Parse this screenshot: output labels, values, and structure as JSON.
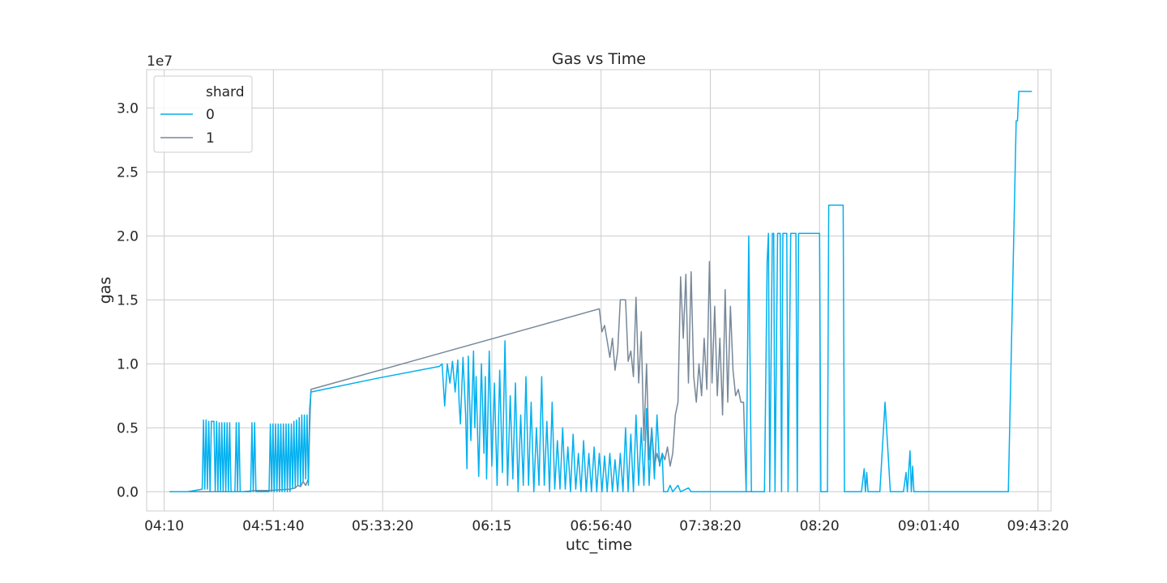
{
  "chart_data": {
    "type": "line",
    "title": "Gas vs Time",
    "xlabel": "utc_time",
    "ylabel": "gas",
    "y_offset_label": "1e7",
    "xlim": [
      "04:03:20",
      "09:48:20"
    ],
    "ylim": [
      -0.15,
      3.3
    ],
    "y_scale_note": "values in units of 1e7",
    "x_ticks": [
      "04:10",
      "04:51:40",
      "05:33:20",
      "06:15",
      "06:56:40",
      "07:38:20",
      "08:20",
      "09:01:40",
      "09:43:20"
    ],
    "y_ticks": [
      "0.0",
      "0.5",
      "1.0",
      "1.5",
      "2.0",
      "2.5",
      "3.0"
    ],
    "grid": true,
    "legend": {
      "title": "shard",
      "placement": "top-left",
      "entries": [
        "0",
        "1"
      ]
    },
    "colors": {
      "0": "#00b0f0",
      "1": "#778899"
    },
    "series": [
      {
        "name": "0",
        "points": [
          [
            "04:12:00",
            0.0
          ],
          [
            "04:19:00",
            0.0
          ],
          [
            "04:24:30",
            0.02
          ],
          [
            "04:25:00",
            0.56
          ],
          [
            "04:25:30",
            0.02
          ],
          [
            "04:26:00",
            0.56
          ],
          [
            "04:26:30",
            0.02
          ],
          [
            "04:27:00",
            0.55
          ],
          [
            "04:27:30",
            0.0
          ],
          [
            "04:28:00",
            0.55
          ],
          [
            "04:29:00",
            0.55
          ],
          [
            "04:29:30",
            0.0
          ],
          [
            "04:30:00",
            0.55
          ],
          [
            "04:30:30",
            0.0
          ],
          [
            "04:31:00",
            0.54
          ],
          [
            "04:31:30",
            0.0
          ],
          [
            "04:32:00",
            0.54
          ],
          [
            "04:32:30",
            0.0
          ],
          [
            "04:33:00",
            0.54
          ],
          [
            "04:33:30",
            0.0
          ],
          [
            "04:34:00",
            0.54
          ],
          [
            "04:34:30",
            0.0
          ],
          [
            "04:35:00",
            0.54
          ],
          [
            "04:35:30",
            0.0
          ],
          [
            "04:37:00",
            0.0
          ],
          [
            "04:37:30",
            0.54
          ],
          [
            "04:38:00",
            0.0
          ],
          [
            "04:38:30",
            0.54
          ],
          [
            "04:39:00",
            0.0
          ],
          [
            "04:40:00",
            0.0
          ],
          [
            "04:43:00",
            0.0
          ],
          [
            "04:43:30",
            0.54
          ],
          [
            "04:44:00",
            0.0
          ],
          [
            "04:44:30",
            0.54
          ],
          [
            "04:45:00",
            0.0
          ],
          [
            "04:50:00",
            0.0
          ],
          [
            "04:50:30",
            0.53
          ],
          [
            "04:51:00",
            0.0
          ],
          [
            "04:51:30",
            0.53
          ],
          [
            "04:52:00",
            0.0
          ],
          [
            "04:52:30",
            0.53
          ],
          [
            "04:53:00",
            0.0
          ],
          [
            "04:53:30",
            0.53
          ],
          [
            "04:54:00",
            0.0
          ],
          [
            "04:54:30",
            0.53
          ],
          [
            "04:55:00",
            0.0
          ],
          [
            "04:55:30",
            0.53
          ],
          [
            "04:56:00",
            0.0
          ],
          [
            "04:56:30",
            0.53
          ],
          [
            "04:57:00",
            0.0
          ],
          [
            "04:57:30",
            0.53
          ],
          [
            "04:58:00",
            0.0
          ],
          [
            "04:58:30",
            0.53
          ],
          [
            "04:59:00",
            0.03
          ],
          [
            "04:59:30",
            0.55
          ],
          [
            "05:00:00",
            0.03
          ],
          [
            "05:00:30",
            0.56
          ],
          [
            "05:01:00",
            0.05
          ],
          [
            "05:01:30",
            0.58
          ],
          [
            "05:02:00",
            0.05
          ],
          [
            "05:02:30",
            0.6
          ],
          [
            "05:03:00",
            0.08
          ],
          [
            "05:03:30",
            0.6
          ],
          [
            "05:04:00",
            0.1
          ],
          [
            "05:04:30",
            0.6
          ],
          [
            "05:05:00",
            0.05
          ],
          [
            "05:05:30",
            0.65
          ],
          [
            "05:06:00",
            0.78
          ],
          [
            "05:32:00",
            0.89
          ],
          [
            "05:55:00",
            0.98
          ],
          [
            "05:56:00",
            1.0
          ],
          [
            "05:57:00",
            0.67
          ],
          [
            "05:58:00",
            1.0
          ],
          [
            "05:59:00",
            0.85
          ],
          [
            "06:00:00",
            1.02
          ],
          [
            "06:01:00",
            0.78
          ],
          [
            "06:02:00",
            1.03
          ],
          [
            "06:02:30",
            0.7
          ],
          [
            "06:03:00",
            0.53
          ],
          [
            "06:04:00",
            1.05
          ],
          [
            "06:05:00",
            0.6
          ],
          [
            "06:05:30",
            0.18
          ],
          [
            "06:06:00",
            1.06
          ],
          [
            "06:07:00",
            0.4
          ],
          [
            "06:08:00",
            1.1
          ],
          [
            "06:08:30",
            0.5
          ],
          [
            "06:09:00",
            0.9
          ],
          [
            "06:10:00",
            0.12
          ],
          [
            "06:11:00",
            1.0
          ],
          [
            "06:12:00",
            0.3
          ],
          [
            "06:12:30",
            0.9
          ],
          [
            "06:13:00",
            0.1
          ],
          [
            "06:14:00",
            1.1
          ],
          [
            "06:15:00",
            0.2
          ],
          [
            "06:16:00",
            0.85
          ],
          [
            "06:17:00",
            0.05
          ],
          [
            "06:18:00",
            0.95
          ],
          [
            "06:19:00",
            0.15
          ],
          [
            "06:20:00",
            1.18
          ],
          [
            "06:21:00",
            0.05
          ],
          [
            "06:22:00",
            0.75
          ],
          [
            "06:23:00",
            0.1
          ],
          [
            "06:24:00",
            0.85
          ],
          [
            "06:25:00",
            0.0
          ],
          [
            "06:26:00",
            0.6
          ],
          [
            "06:27:00",
            0.05
          ],
          [
            "06:28:00",
            0.9
          ],
          [
            "06:29:00",
            0.05
          ],
          [
            "06:30:00",
            0.7
          ],
          [
            "06:31:00",
            0.0
          ],
          [
            "06:32:00",
            0.5
          ],
          [
            "06:33:00",
            0.05
          ],
          [
            "06:34:00",
            0.9
          ],
          [
            "06:35:00",
            0.05
          ],
          [
            "06:36:00",
            0.55
          ],
          [
            "06:37:00",
            0.0
          ],
          [
            "06:38:00",
            0.7
          ],
          [
            "06:39:00",
            0.02
          ],
          [
            "06:40:00",
            0.4
          ],
          [
            "06:41:00",
            0.02
          ],
          [
            "06:42:00",
            0.5
          ],
          [
            "06:43:00",
            0.02
          ],
          [
            "06:44:00",
            0.35
          ],
          [
            "06:45:00",
            0.0
          ],
          [
            "06:46:00",
            0.45
          ],
          [
            "06:47:00",
            0.02
          ],
          [
            "06:48:00",
            0.3
          ],
          [
            "06:49:00",
            0.0
          ],
          [
            "06:50:00",
            0.4
          ],
          [
            "06:51:00",
            0.0
          ],
          [
            "06:52:00",
            0.3
          ],
          [
            "06:53:00",
            0.0
          ],
          [
            "06:54:00",
            0.35
          ],
          [
            "06:55:00",
            0.0
          ],
          [
            "06:56:00",
            0.3
          ],
          [
            "06:57:00",
            0.0
          ],
          [
            "06:58:00",
            0.28
          ],
          [
            "06:59:00",
            0.0
          ],
          [
            "07:00:00",
            0.3
          ],
          [
            "07:01:00",
            0.0
          ],
          [
            "07:02:00",
            0.25
          ],
          [
            "07:03:00",
            0.0
          ],
          [
            "07:04:00",
            0.3
          ],
          [
            "07:05:00",
            0.0
          ],
          [
            "07:06:00",
            0.5
          ],
          [
            "07:07:00",
            0.0
          ],
          [
            "07:08:00",
            0.45
          ],
          [
            "07:09:00",
            0.0
          ],
          [
            "07:10:00",
            0.6
          ],
          [
            "07:11:00",
            0.05
          ],
          [
            "07:12:00",
            0.5
          ],
          [
            "07:13:00",
            0.05
          ],
          [
            "07:14:00",
            0.65
          ],
          [
            "07:15:00",
            0.05
          ],
          [
            "07:16:00",
            0.5
          ],
          [
            "07:17:00",
            0.1
          ],
          [
            "07:18:00",
            0.6
          ],
          [
            "07:19:00",
            0.2
          ],
          [
            "07:20:00",
            0.3
          ],
          [
            "07:20:30",
            0.0
          ],
          [
            "07:22:00",
            0.0
          ],
          [
            "07:23:00",
            0.05
          ],
          [
            "07:24:00",
            0.0
          ],
          [
            "07:26:00",
            0.05
          ],
          [
            "07:27:00",
            0.0
          ],
          [
            "07:30:00",
            0.03
          ],
          [
            "07:31:00",
            0.0
          ],
          [
            "07:52:00",
            0.0
          ],
          [
            "07:53:00",
            2.0
          ],
          [
            "07:54:00",
            0.0
          ],
          [
            "07:59:00",
            0.0
          ],
          [
            "08:00:00",
            1.8
          ],
          [
            "08:00:30",
            2.02
          ],
          [
            "08:01:00",
            0.0
          ],
          [
            "08:02:00",
            2.02
          ],
          [
            "08:02:30",
            2.02
          ],
          [
            "08:03:00",
            0.0
          ],
          [
            "08:04:00",
            2.02
          ],
          [
            "08:05:00",
            2.02
          ],
          [
            "08:05:30",
            0.0
          ],
          [
            "08:06:00",
            2.02
          ],
          [
            "08:07:30",
            2.02
          ],
          [
            "08:08:00",
            0.0
          ],
          [
            "08:09:00",
            2.02
          ],
          [
            "08:11:00",
            2.02
          ],
          [
            "08:11:30",
            0.0
          ],
          [
            "08:12:00",
            2.02
          ],
          [
            "08:20:00",
            2.02
          ],
          [
            "08:20:30",
            0.0
          ],
          [
            "08:23:00",
            0.0
          ],
          [
            "08:23:30",
            2.24
          ],
          [
            "08:29:00",
            2.24
          ],
          [
            "08:29:30",
            0.0
          ],
          [
            "08:36:00",
            0.0
          ],
          [
            "08:37:00",
            0.18
          ],
          [
            "08:37:30",
            0.0
          ],
          [
            "08:38:00",
            0.15
          ],
          [
            "08:38:30",
            0.0
          ],
          [
            "08:43:00",
            0.0
          ],
          [
            "08:45:00",
            0.7
          ],
          [
            "08:47:00",
            0.0
          ],
          [
            "08:52:00",
            0.0
          ],
          [
            "08:53:00",
            0.15
          ],
          [
            "08:53:30",
            0.0
          ],
          [
            "08:54:30",
            0.32
          ],
          [
            "08:55:00",
            0.0
          ],
          [
            "08:55:30",
            0.2
          ],
          [
            "08:56:00",
            0.0
          ],
          [
            "09:00:00",
            0.0
          ],
          [
            "09:18:00",
            0.0
          ],
          [
            "09:32:00",
            0.0
          ],
          [
            "09:34:00",
            1.9
          ],
          [
            "09:35:00",
            2.9
          ],
          [
            "09:35:30",
            2.9
          ],
          [
            "09:36:00",
            3.13
          ],
          [
            "09:41:00",
            3.13
          ]
        ]
      },
      {
        "name": "1",
        "points": [
          [
            "04:12:00",
            0.0
          ],
          [
            "04:40:00",
            0.0
          ],
          [
            "04:45:00",
            0.01
          ],
          [
            "04:50:00",
            0.01
          ],
          [
            "04:58:00",
            0.02
          ],
          [
            "05:00:00",
            0.03
          ],
          [
            "05:01:00",
            0.05
          ],
          [
            "05:02:00",
            0.04
          ],
          [
            "05:03:00",
            0.08
          ],
          [
            "05:04:00",
            0.05
          ],
          [
            "05:05:00",
            0.1
          ],
          [
            "05:05:30",
            0.5
          ],
          [
            "05:06:00",
            0.8
          ],
          [
            "06:56:00",
            1.43
          ],
          [
            "06:57:00",
            1.25
          ],
          [
            "06:58:00",
            1.3
          ],
          [
            "06:59:00",
            1.18
          ],
          [
            "07:00:00",
            1.05
          ],
          [
            "07:01:00",
            1.2
          ],
          [
            "07:02:00",
            0.95
          ],
          [
            "07:03:00",
            1.1
          ],
          [
            "07:04:00",
            1.5
          ],
          [
            "07:06:00",
            1.5
          ],
          [
            "07:07:00",
            1.02
          ],
          [
            "07:08:00",
            1.1
          ],
          [
            "07:09:00",
            0.9
          ],
          [
            "07:10:00",
            1.52
          ],
          [
            "07:11:00",
            0.85
          ],
          [
            "07:12:00",
            1.25
          ],
          [
            "07:13:00",
            0.4
          ],
          [
            "07:14:00",
            1.0
          ],
          [
            "07:15:00",
            0.25
          ],
          [
            "07:16:00",
            0.5
          ],
          [
            "07:17:00",
            0.2
          ],
          [
            "07:18:00",
            0.3
          ],
          [
            "07:19:00",
            0.22
          ],
          [
            "07:20:00",
            0.3
          ],
          [
            "07:21:00",
            0.25
          ],
          [
            "07:22:00",
            0.35
          ],
          [
            "07:23:00",
            0.2
          ],
          [
            "07:24:00",
            0.3
          ],
          [
            "07:25:00",
            0.6
          ],
          [
            "07:26:00",
            0.7
          ],
          [
            "07:27:00",
            1.68
          ],
          [
            "07:28:00",
            1.2
          ],
          [
            "07:29:00",
            1.7
          ],
          [
            "07:30:00",
            0.85
          ],
          [
            "07:31:00",
            1.72
          ],
          [
            "07:32:00",
            0.9
          ],
          [
            "07:33:00",
            0.7
          ],
          [
            "07:34:00",
            1.0
          ],
          [
            "07:35:00",
            0.75
          ],
          [
            "07:36:00",
            1.2
          ],
          [
            "07:37:00",
            0.8
          ],
          [
            "07:38:00",
            1.8
          ],
          [
            "07:39:00",
            0.85
          ],
          [
            "07:40:00",
            1.45
          ],
          [
            "07:41:00",
            0.75
          ],
          [
            "07:42:00",
            1.2
          ],
          [
            "07:43:00",
            0.6
          ],
          [
            "07:44:00",
            1.58
          ],
          [
            "07:45:00",
            0.7
          ],
          [
            "07:46:00",
            1.45
          ],
          [
            "07:47:00",
            0.95
          ],
          [
            "07:48:00",
            0.75
          ],
          [
            "07:49:00",
            0.8
          ],
          [
            "07:50:00",
            0.7
          ],
          [
            "07:51:00",
            0.7
          ],
          [
            "07:52:00",
            0.0
          ],
          [
            "07:59:00",
            0.0
          ]
        ]
      }
    ]
  }
}
